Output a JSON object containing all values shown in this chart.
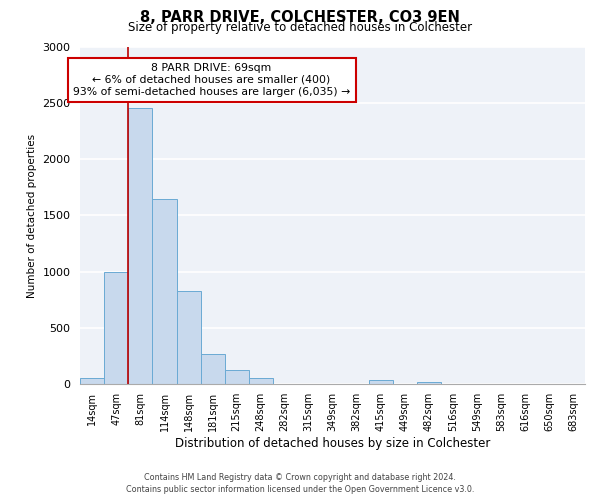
{
  "title": "8, PARR DRIVE, COLCHESTER, CO3 9EN",
  "subtitle": "Size of property relative to detached houses in Colchester",
  "xlabel": "Distribution of detached houses by size in Colchester",
  "ylabel": "Number of detached properties",
  "bin_labels": [
    "14sqm",
    "47sqm",
    "81sqm",
    "114sqm",
    "148sqm",
    "181sqm",
    "215sqm",
    "248sqm",
    "282sqm",
    "315sqm",
    "349sqm",
    "382sqm",
    "415sqm",
    "449sqm",
    "482sqm",
    "516sqm",
    "549sqm",
    "583sqm",
    "616sqm",
    "650sqm",
    "683sqm"
  ],
  "bar_values": [
    55,
    1000,
    2450,
    1650,
    830,
    270,
    130,
    55,
    0,
    0,
    0,
    0,
    35,
    0,
    25,
    0,
    0,
    0,
    0,
    0,
    0
  ],
  "bar_color": "#c8d9ed",
  "bar_edgecolor": "#6aaad4",
  "ylim": [
    0,
    3000
  ],
  "yticks": [
    0,
    500,
    1000,
    1500,
    2000,
    2500,
    3000
  ],
  "red_line_color": "#bb0000",
  "annotation_title": "8 PARR DRIVE: 69sqm",
  "annotation_line1": "← 6% of detached houses are smaller (400)",
  "annotation_line2": "93% of semi-detached houses are larger (6,035) →",
  "annotation_box_facecolor": "#ffffff",
  "annotation_box_edgecolor": "#cc0000",
  "footer_line1": "Contains HM Land Registry data © Crown copyright and database right 2024.",
  "footer_line2": "Contains public sector information licensed under the Open Government Licence v3.0.",
  "bg_color": "#eef2f8"
}
